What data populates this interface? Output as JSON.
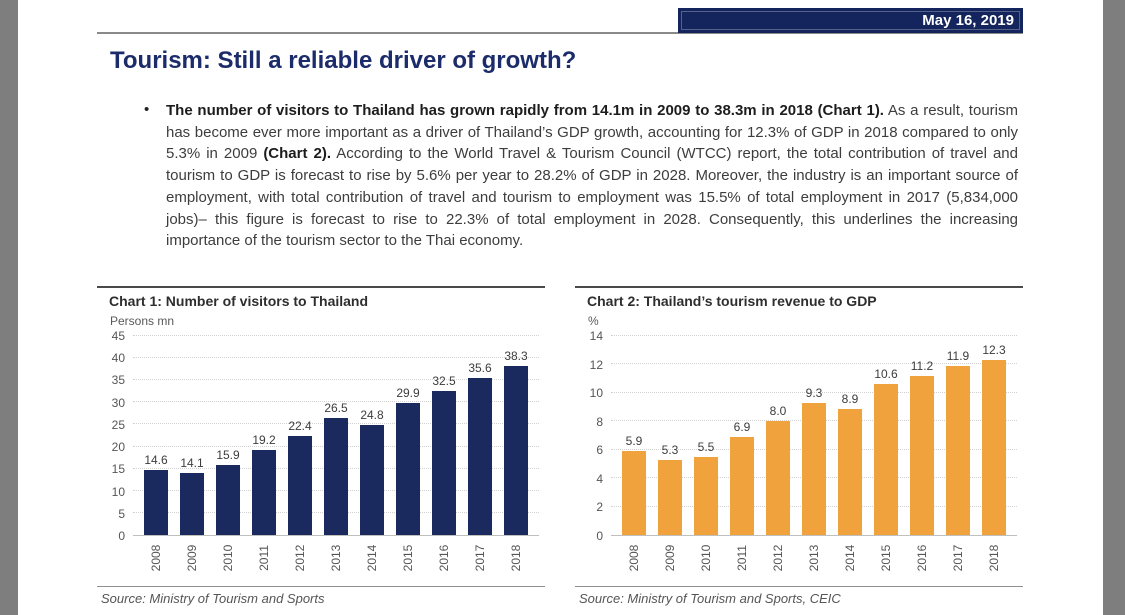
{
  "colors": {
    "page_margin_gray": "#7e7e7e",
    "header_bar_navy": "#14245c",
    "title_navy": "#1c2c6a",
    "chart1_bar_navy": "#1b2a5e",
    "chart2_bar_orange": "#f0a23c"
  },
  "header": {
    "date": "May 16, 2019"
  },
  "article": {
    "title": "Tourism: Still a reliable driver of growth?",
    "bullet_glyph": "•",
    "bullet_segments": [
      {
        "bold": true,
        "text": "The number of visitors to Thailand has grown rapidly from 14.1m in 2009 to 38.3m in 2018 (Chart 1)."
      },
      {
        "bold": false,
        "text": " As a result, tourism has become ever more important as a driver of Thailand’s GDP growth, accounting for 12.3% of GDP in 2018 compared to only 5.3% in 2009 "
      },
      {
        "bold": true,
        "text": "(Chart 2)."
      },
      {
        "bold": false,
        "text": " According to the World Travel & Tourism Council (WTCC) report, the total contribution of travel and tourism to GDP is forecast to rise by 5.6% per year to 28.2% of GDP in 2028. Moreover, the industry is an important source of employment, with total contribution of travel and tourism to employment was 15.5% of total employment in 2017 (5,834,000 jobs)– this figure is forecast to rise to 22.3% of total employment in 2028. Consequently, this underlines the increasing importance of the tourism sector to the Thai economy."
      }
    ]
  },
  "chart_data": [
    {
      "type": "bar",
      "title": "Chart 1: Number of visitors to Thailand",
      "unit_label": "Persons mn",
      "xlabel": "",
      "ylabel": "Persons mn",
      "categories": [
        "2008",
        "2009",
        "2010",
        "2011",
        "2012",
        "2013",
        "2014",
        "2015",
        "2016",
        "2017",
        "2018"
      ],
      "values": [
        14.6,
        14.1,
        15.9,
        19.2,
        22.4,
        26.5,
        24.8,
        29.9,
        32.5,
        35.6,
        38.3
      ],
      "ylim": [
        0,
        45
      ],
      "ytick_step": 5,
      "grid": true,
      "legend": false,
      "bar_color": "#1b2a5e",
      "source": "Source: Ministry of Tourism and Sports"
    },
    {
      "type": "bar",
      "title": "Chart 2: Thailand’s tourism revenue to GDP",
      "unit_label": "%",
      "xlabel": "",
      "ylabel": "%",
      "categories": [
        "2008",
        "2009",
        "2010",
        "2011",
        "2012",
        "2013",
        "2014",
        "2015",
        "2016",
        "2017",
        "2018"
      ],
      "values": [
        5.9,
        5.3,
        5.5,
        6.9,
        8.0,
        9.3,
        8.9,
        10.6,
        11.2,
        11.9,
        12.3
      ],
      "ylim": [
        0,
        14
      ],
      "ytick_step": 2,
      "grid": true,
      "legend": false,
      "bar_color": "#f0a23c",
      "source": "Source: Ministry of Tourism and Sports, CEIC"
    }
  ]
}
